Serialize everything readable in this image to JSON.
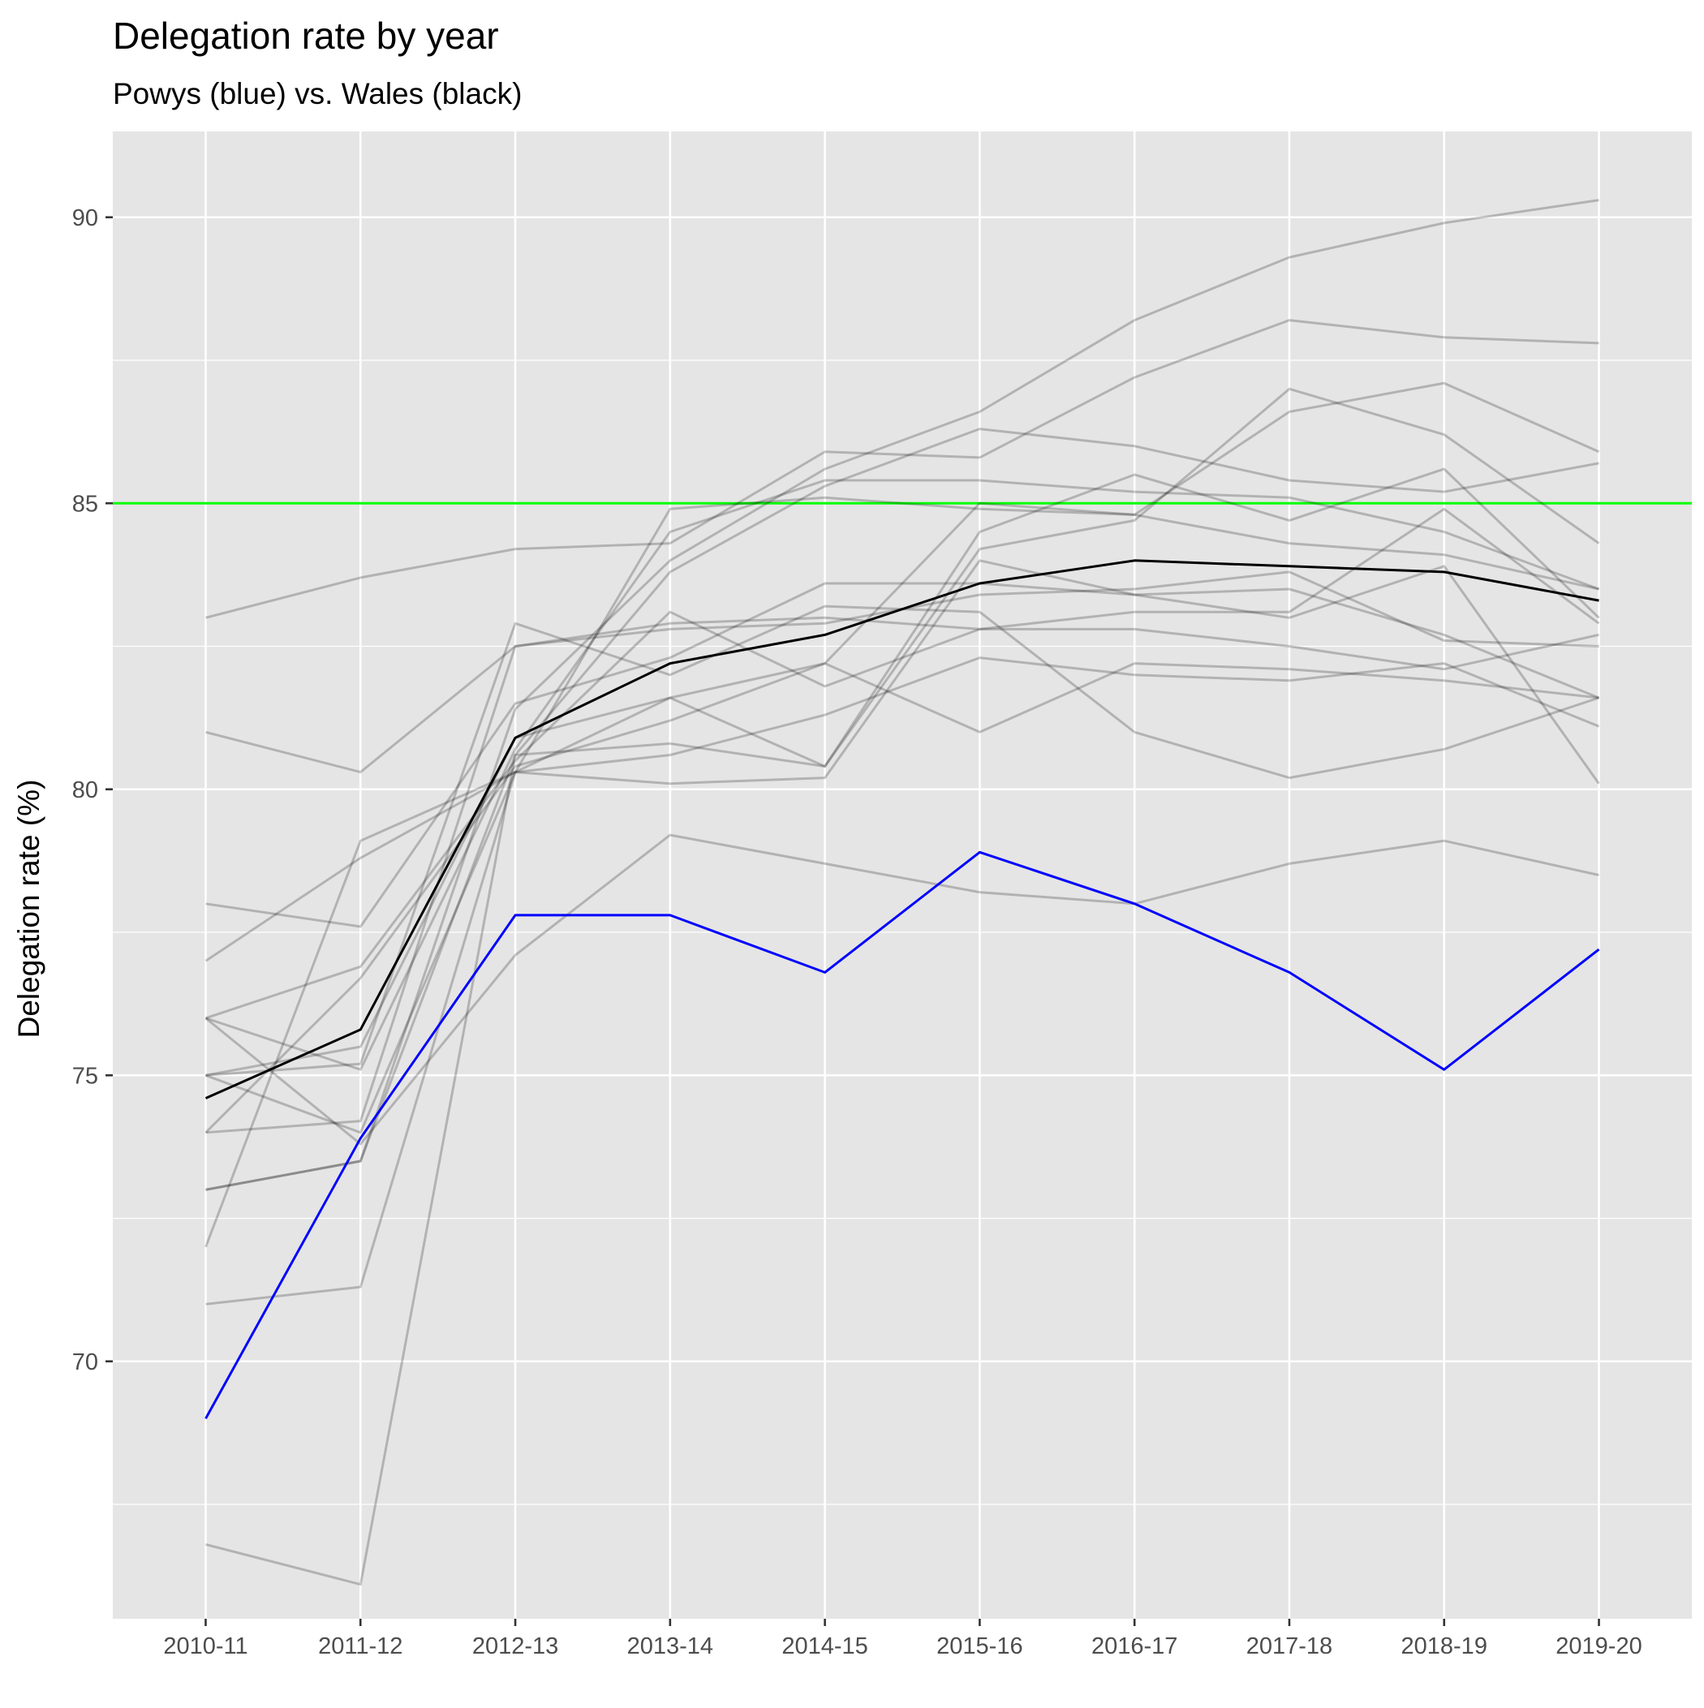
{
  "chart_data": {
    "type": "line",
    "title": "Delegation rate by year",
    "subtitle": "Powys (blue) vs. Wales (black)",
    "xlabel": "",
    "ylabel": "Delegation rate (%)",
    "categories": [
      "2010-11",
      "2011-12",
      "2012-13",
      "2013-14",
      "2014-15",
      "2015-16",
      "2016-17",
      "2017-18",
      "2018-19",
      "2019-20"
    ],
    "ylim": [
      65.5,
      91.5
    ],
    "yticks": [
      70,
      75,
      80,
      85,
      90
    ],
    "grid": true,
    "reference_line": {
      "value": 85,
      "color": "#00ff00"
    },
    "colors": {
      "panel": "#e5e5e5",
      "grid": "#ffffff",
      "background_series": "#000000",
      "background_opacity": 0.22,
      "wales": "#000000",
      "powys": "#0000ff"
    },
    "background_series": [
      {
        "values": [
          83.0,
          83.7,
          84.2,
          84.3,
          85.9,
          85.8,
          87.2,
          88.2,
          87.9,
          87.8
        ]
      },
      {
        "values": [
          81.0,
          80.3,
          82.5,
          82.9,
          83.0,
          82.8,
          82.8,
          82.5,
          82.1,
          82.7
        ]
      },
      {
        "values": [
          78.0,
          77.6,
          81.5,
          82.3,
          83.6,
          83.6,
          83.4,
          83.5,
          82.7,
          81.6
        ]
      },
      {
        "values": [
          77.0,
          78.8,
          80.3,
          80.1,
          80.2,
          84.0,
          83.4,
          83.0,
          83.9,
          80.1
        ]
      },
      {
        "values": [
          76.0,
          76.9,
          80.5,
          83.1,
          81.8,
          82.8,
          83.1,
          83.1,
          84.9,
          82.9
        ]
      },
      {
        "values": [
          76.0,
          75.1,
          80.7,
          84.5,
          85.4,
          85.4,
          85.2,
          85.1,
          84.5,
          83.5
        ]
      },
      {
        "values": [
          75.0,
          75.5,
          80.9,
          81.6,
          80.4,
          84.2,
          84.7,
          87.0,
          86.2,
          84.3
        ]
      },
      {
        "values": [
          75.0,
          75.2,
          82.9,
          82.0,
          83.2,
          83.1,
          81.0,
          80.2,
          80.7,
          81.6
        ]
      },
      {
        "values": [
          74.0,
          74.2,
          82.5,
          82.8,
          82.9,
          83.4,
          83.5,
          83.8,
          82.6,
          82.5
        ]
      },
      {
        "values": [
          74.0,
          76.7,
          80.4,
          81.2,
          82.2,
          85.0,
          84.8,
          84.3,
          84.1,
          83.5
        ]
      },
      {
        "values": [
          73.0,
          73.5,
          80.6,
          80.8,
          80.4,
          84.5,
          85.5,
          84.7,
          85.6,
          83.0
        ]
      },
      {
        "values": [
          73.0,
          73.5,
          81.4,
          84.0,
          85.6,
          86.6,
          88.2,
          89.3,
          89.9,
          90.3
        ]
      },
      {
        "values": [
          72.0,
          79.1,
          80.3,
          84.9,
          85.1,
          84.9,
          84.8,
          86.6,
          87.1,
          85.9
        ]
      },
      {
        "values": [
          71.0,
          71.3,
          80.3,
          80.6,
          81.3,
          82.3,
          82.0,
          81.9,
          82.2,
          81.1
        ]
      },
      {
        "values": [
          66.8,
          66.1,
          80.6,
          83.8,
          85.3,
          86.3,
          86.0,
          85.4,
          85.2,
          85.7
        ]
      },
      {
        "values": [
          75.0,
          74.0,
          80.3,
          81.6,
          82.2,
          81.0,
          82.2,
          82.1,
          81.9,
          81.6
        ]
      },
      {
        "values": [
          76.0,
          73.8,
          77.1,
          79.2,
          78.7,
          78.2,
          78.0,
          78.7,
          79.1,
          78.5
        ]
      }
    ],
    "series": [
      {
        "name": "Wales",
        "color": "#000000",
        "values": [
          74.6,
          75.8,
          80.9,
          82.2,
          82.7,
          83.6,
          84.0,
          83.9,
          83.8,
          83.3
        ]
      },
      {
        "name": "Powys",
        "color": "#0000ff",
        "values": [
          69.0,
          73.9,
          77.8,
          77.8,
          76.8,
          78.9,
          78.0,
          76.8,
          75.1,
          77.2
        ]
      }
    ]
  }
}
